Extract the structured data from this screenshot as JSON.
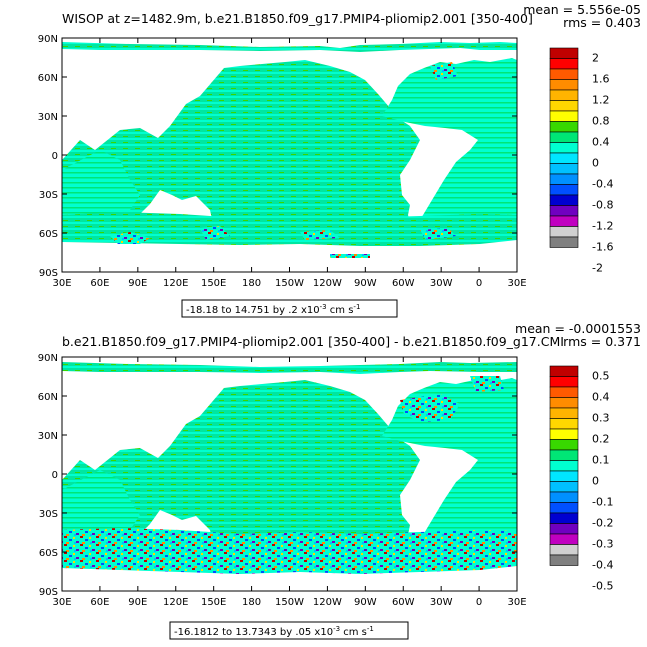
{
  "panels": [
    {
      "title": "WISOP at z=1482.9m, b.e21.B1850.f09_g17.PMIP4-pliomip2.001 [350-400]",
      "mean": "mean = 5.556e-05",
      "rms": "rms = 0.403",
      "range_text": "-18.18 to 14.751 by .2 x10",
      "range_exp": "-3",
      "range_units": "cm s",
      "range_units_exp": "-1",
      "colorbar_labels": [
        "2",
        "1.6",
        "1.2",
        "0.8",
        "0.4",
        "0",
        "-0.4",
        "-0.8",
        "-1.2",
        "-1.6",
        "-2"
      ],
      "colorbar_colors": [
        "#c00000",
        "#ff0000",
        "#ff5a00",
        "#ff8c00",
        "#ffb400",
        "#ffd700",
        "#ffff00",
        "#38d800",
        "#00e676",
        "#00ffd0",
        "#00e6ff",
        "#00c0ff",
        "#0090ff",
        "#0050ff",
        "#0000d0",
        "#7000c0",
        "#c000c0",
        "#d0d0d0",
        "#808080"
      ]
    },
    {
      "title": "b.e21.B1850.f09_g17.PMIP4-pliomip2.001 [350-400] - b.e21.B1850.f09_g17.CMI",
      "mean": "mean = -0.0001553",
      "rms": "rms = 0.371",
      "range_text": "-16.1812 to 13.7343 by .05 x10",
      "range_exp": "-3",
      "range_units": "cm s",
      "range_units_exp": "-1",
      "colorbar_labels": [
        "0.5",
        "0.4",
        "0.3",
        "0.2",
        "0.1",
        "0",
        "-0.1",
        "-0.2",
        "-0.3",
        "-0.4",
        "-0.5"
      ],
      "colorbar_colors": [
        "#c00000",
        "#ff0000",
        "#ff5a00",
        "#ff8c00",
        "#ffb400",
        "#ffd700",
        "#ffff00",
        "#38d800",
        "#00e676",
        "#00ffd0",
        "#00e6ff",
        "#00c0ff",
        "#0090ff",
        "#0050ff",
        "#0000d0",
        "#7000c0",
        "#c000c0",
        "#d0d0d0",
        "#808080"
      ]
    }
  ],
  "chart_data": [
    {
      "type": "heatmap",
      "title": "WISOP at z=1482.9m, b.e21.B1850.f09_g17.PMIP4-pliomip2.001 [350-400]",
      "x_tick_labels": [
        "30E",
        "60E",
        "90E",
        "120E",
        "150E",
        "180",
        "150W",
        "120W",
        "90W",
        "60W",
        "30W",
        "0",
        "30E"
      ],
      "y_tick_labels": [
        "90N",
        "60N",
        "30N",
        "0",
        "30S",
        "60S",
        "90S"
      ],
      "xlim": [
        30,
        390
      ],
      "ylim": [
        -90,
        90
      ],
      "colorbar_levels": [
        2,
        1.6,
        1.2,
        0.8,
        0.4,
        0,
        -0.4,
        -0.8,
        -1.2,
        -1.6,
        -2
      ],
      "stats": {
        "mean": 5.556e-05,
        "rms": 0.403,
        "min": -18.18,
        "max": 14.751,
        "interval": 0.2
      },
      "units": "x10^-3 cm s^-1"
    },
    {
      "type": "heatmap",
      "title": "b.e21.B1850.f09_g17.PMIP4-pliomip2.001 [350-400] - b.e21.B1850.f09_g17.CMI",
      "x_tick_labels": [
        "30E",
        "60E",
        "90E",
        "120E",
        "150E",
        "180",
        "150W",
        "120W",
        "90W",
        "60W",
        "30W",
        "0",
        "30E"
      ],
      "y_tick_labels": [
        "90N",
        "60N",
        "30N",
        "0",
        "30S",
        "60S",
        "90S"
      ],
      "xlim": [
        30,
        390
      ],
      "ylim": [
        -90,
        90
      ],
      "colorbar_levels": [
        0.5,
        0.4,
        0.3,
        0.2,
        0.1,
        0,
        -0.1,
        -0.2,
        -0.3,
        -0.4,
        -0.5
      ],
      "stats": {
        "mean": -0.0001553,
        "rms": 0.371,
        "min": -16.1812,
        "max": 13.7343,
        "interval": 0.05
      },
      "units": "x10^-3 cm s^-1"
    }
  ]
}
